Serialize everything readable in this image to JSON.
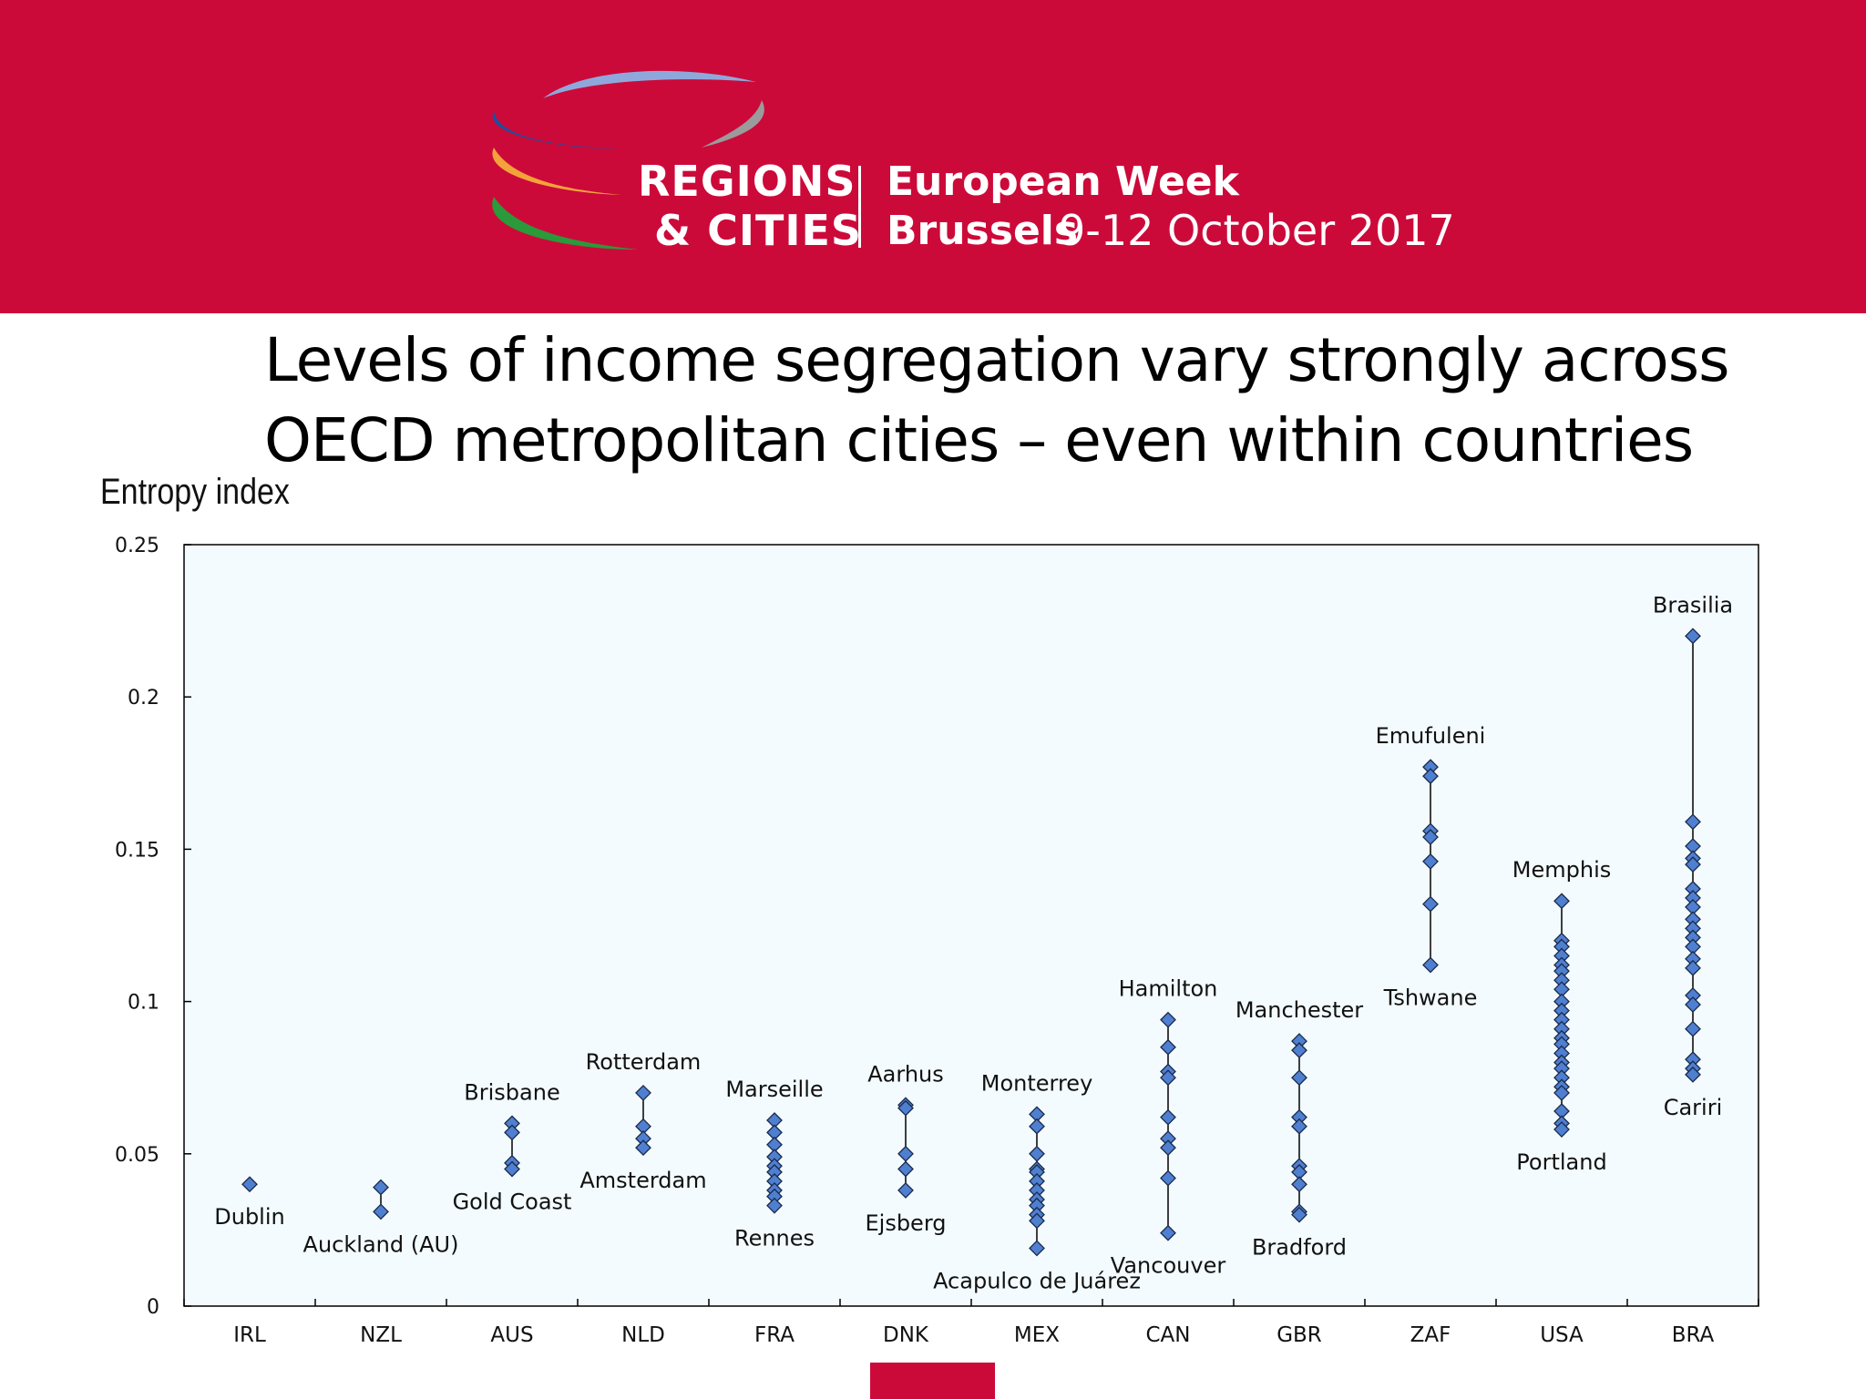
{
  "header": {
    "logo": {
      "line1": "REGIONS",
      "line2": "& CITIES",
      "event": "European Week",
      "city": "Brussels",
      "dates": "9-12 October 2017"
    },
    "background_color": "#cc0a3a"
  },
  "title_lines": [
    "Levels of income segregation vary strongly across",
    "OECD metropolitan cities – even within countries"
  ],
  "colors": {
    "marker_fill": "#4f7fd0",
    "marker_stroke": "#1a2a4a",
    "plot_background": "#f3fbfe",
    "accent": "#cc0a3a"
  },
  "chart_data": {
    "type": "scatter",
    "ylabel": "Entropy index",
    "xlabel": "",
    "ylim": [
      0,
      0.25
    ],
    "yticks": [
      0,
      0.05,
      0.1,
      0.15,
      0.2,
      0.25
    ],
    "ytick_labels": [
      "0",
      "0.05",
      "0.1",
      "0.15",
      "0.2",
      "0.25"
    ],
    "grid": false,
    "marker": "diamond",
    "categories": [
      "IRL",
      "NZL",
      "AUS",
      "NLD",
      "FRA",
      "DNK",
      "MEX",
      "CAN",
      "GBR",
      "ZAF",
      "USA",
      "BRA"
    ],
    "series": [
      {
        "category": "IRL",
        "values": [
          0.04
        ],
        "labels": [
          {
            "text": "Dublin",
            "value": 0.04,
            "position": "bottom"
          }
        ]
      },
      {
        "category": "NZL",
        "values": [
          0.039,
          0.031
        ],
        "labels": [
          {
            "text": "Auckland (AU)",
            "value": 0.031,
            "position": "bottom"
          }
        ]
      },
      {
        "category": "AUS",
        "values": [
          0.06,
          0.057,
          0.047,
          0.045
        ],
        "labels": [
          {
            "text": "Brisbane",
            "value": 0.06,
            "position": "top"
          },
          {
            "text": "Gold Coast",
            "value": 0.045,
            "position": "bottom"
          }
        ]
      },
      {
        "category": "NLD",
        "values": [
          0.07,
          0.059,
          0.055,
          0.052
        ],
        "labels": [
          {
            "text": "Rotterdam",
            "value": 0.07,
            "position": "top"
          },
          {
            "text": "Amsterdam",
            "value": 0.052,
            "position": "bottom"
          }
        ]
      },
      {
        "category": "FRA",
        "values": [
          0.061,
          0.057,
          0.053,
          0.049,
          0.046,
          0.044,
          0.041,
          0.038,
          0.036,
          0.033
        ],
        "labels": [
          {
            "text": "Marseille",
            "value": 0.061,
            "position": "top"
          },
          {
            "text": "Rennes",
            "value": 0.033,
            "position": "bottom"
          }
        ]
      },
      {
        "category": "DNK",
        "values": [
          0.066,
          0.065,
          0.05,
          0.045,
          0.038
        ],
        "labels": [
          {
            "text": "Aarhus",
            "value": 0.066,
            "position": "top"
          },
          {
            "text": "Ejsberg",
            "value": 0.038,
            "position": "bottom"
          }
        ]
      },
      {
        "category": "MEX",
        "values": [
          0.063,
          0.059,
          0.05,
          0.045,
          0.044,
          0.041,
          0.038,
          0.035,
          0.033,
          0.03,
          0.028,
          0.019
        ],
        "labels": [
          {
            "text": "Monterrey",
            "value": 0.063,
            "position": "top"
          },
          {
            "text": "Acapulco de Juárez",
            "value": 0.019,
            "position": "bottom"
          }
        ]
      },
      {
        "category": "CAN",
        "values": [
          0.094,
          0.085,
          0.077,
          0.075,
          0.062,
          0.055,
          0.052,
          0.042,
          0.024
        ],
        "labels": [
          {
            "text": "Hamilton",
            "value": 0.094,
            "position": "top"
          },
          {
            "text": "Vancouver",
            "value": 0.024,
            "position": "bottom"
          }
        ]
      },
      {
        "category": "GBR",
        "values": [
          0.087,
          0.084,
          0.075,
          0.062,
          0.059,
          0.046,
          0.044,
          0.04,
          0.031,
          0.03
        ],
        "labels": [
          {
            "text": "Manchester",
            "value": 0.087,
            "position": "top"
          },
          {
            "text": "Bradford",
            "value": 0.03,
            "position": "bottom"
          }
        ]
      },
      {
        "category": "ZAF",
        "values": [
          0.177,
          0.174,
          0.156,
          0.154,
          0.146,
          0.132,
          0.112
        ],
        "labels": [
          {
            "text": "Emufuleni",
            "value": 0.177,
            "position": "top"
          },
          {
            "text": "Tshwane",
            "value": 0.112,
            "position": "bottom"
          }
        ]
      },
      {
        "category": "USA",
        "values": [
          0.133,
          0.12,
          0.118,
          0.115,
          0.112,
          0.11,
          0.107,
          0.104,
          0.1,
          0.097,
          0.094,
          0.091,
          0.088,
          0.086,
          0.083,
          0.08,
          0.078,
          0.075,
          0.072,
          0.07,
          0.064,
          0.06,
          0.058
        ],
        "labels": [
          {
            "text": "Memphis",
            "value": 0.133,
            "position": "top"
          },
          {
            "text": "Portland",
            "value": 0.058,
            "position": "bottom"
          }
        ]
      },
      {
        "category": "BRA",
        "values": [
          0.22,
          0.159,
          0.151,
          0.147,
          0.145,
          0.137,
          0.134,
          0.131,
          0.127,
          0.124,
          0.121,
          0.118,
          0.114,
          0.111,
          0.102,
          0.099,
          0.091,
          0.081,
          0.078,
          0.076
        ],
        "labels": [
          {
            "text": "Brasilia",
            "value": 0.22,
            "position": "top"
          },
          {
            "text": "Cariri",
            "value": 0.076,
            "position": "bottom"
          }
        ]
      }
    ]
  }
}
